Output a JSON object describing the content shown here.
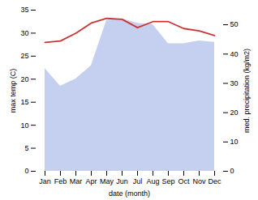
{
  "chart_data": {
    "type": "line",
    "xlabel": "date (month)",
    "ylabel": "max temp (C)",
    "y2label": "med. precipitation (kg/m2)",
    "categories": [
      "Jan",
      "Feb",
      "Mar",
      "Apr",
      "May",
      "Jun",
      "Jul",
      "Aug",
      "Sep",
      "Oct",
      "Nov",
      "Dec"
    ],
    "series": [
      {
        "type": "area",
        "axis": "y2",
        "color": "#c5d0f0",
        "values": [
          35.0,
          29.0,
          31.5,
          36.0,
          51.5,
          52.0,
          50.5,
          50.0,
          43.5,
          43.5,
          44.5,
          44.0
        ]
      },
      {
        "type": "line",
        "color": "#cc3333",
        "values": [
          28.0,
          28.3,
          30.0,
          32.2,
          33.2,
          33.0,
          31.2,
          32.5,
          32.5,
          31.0,
          30.5,
          29.5
        ]
      }
    ],
    "ylim": [
      0,
      35
    ],
    "yticks": [
      0,
      5,
      10,
      15,
      20,
      25,
      30,
      35
    ],
    "y2lim": [
      0,
      55
    ],
    "y2ticks": [
      0,
      10,
      20,
      30,
      40,
      50
    ],
    "grid": false
  }
}
